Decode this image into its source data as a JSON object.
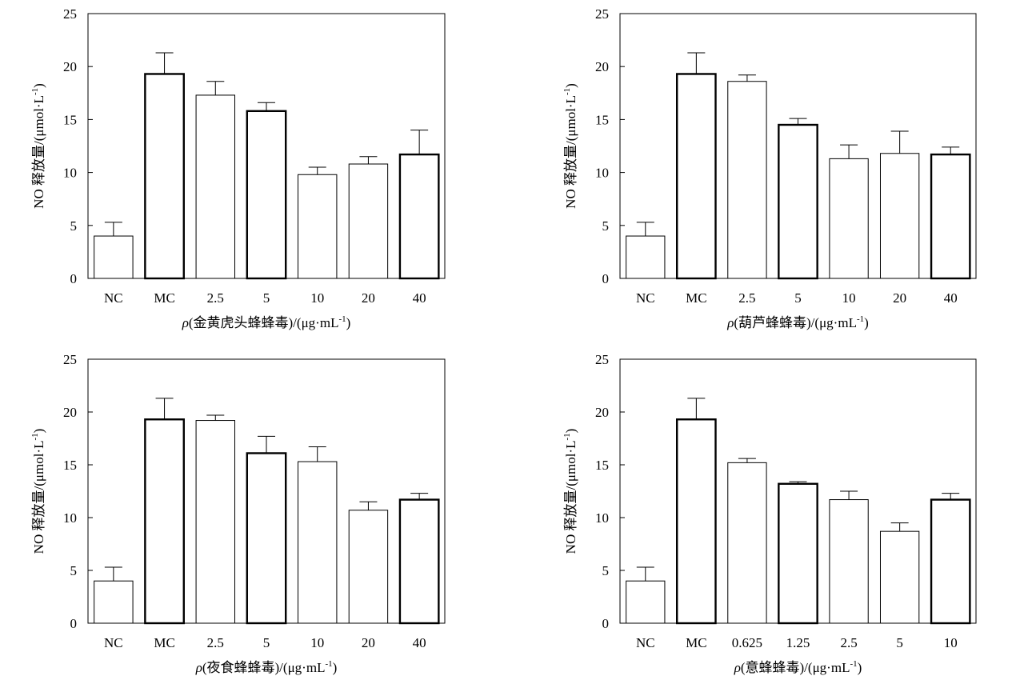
{
  "chart_data": [
    {
      "type": "bar",
      "ylabel_main": "NO 释放量/(μmol·L",
      "ylabel_sup": "-1",
      "ylabel_close": ")",
      "xlabel_rho": "ρ",
      "xlabel_main": "(金黄虎头蜂蜂毒)/(μg·mL",
      "xlabel_sup": "-1",
      "xlabel_close": ")",
      "ylim": [
        0,
        25
      ],
      "yticks": [
        "0",
        "5",
        "10",
        "15",
        "20",
        "25"
      ],
      "categories": [
        "NC",
        "MC",
        "2.5",
        "5",
        "10",
        "20",
        "40"
      ],
      "values": [
        4.0,
        19.3,
        17.3,
        15.8,
        9.8,
        10.8,
        11.7
      ],
      "errors": [
        1.3,
        2.0,
        1.3,
        0.8,
        0.7,
        0.7,
        2.3
      ],
      "bold": [
        false,
        true,
        false,
        true,
        false,
        false,
        true
      ]
    },
    {
      "type": "bar",
      "ylabel_main": "NO 释放量/(μmol·L",
      "ylabel_sup": "-1",
      "ylabel_close": ")",
      "xlabel_rho": "ρ",
      "xlabel_main": "(葫芦蜂蜂毒)/(μg·mL",
      "xlabel_sup": "-1",
      "xlabel_close": ")",
      "ylim": [
        0,
        25
      ],
      "yticks": [
        "0",
        "5",
        "10",
        "15",
        "20",
        "25"
      ],
      "categories": [
        "NC",
        "MC",
        "2.5",
        "5",
        "10",
        "20",
        "40"
      ],
      "values": [
        4.0,
        19.3,
        18.6,
        14.5,
        11.3,
        11.8,
        11.7
      ],
      "errors": [
        1.3,
        2.0,
        0.6,
        0.6,
        1.3,
        2.1,
        0.7
      ],
      "bold": [
        false,
        true,
        false,
        true,
        false,
        false,
        true
      ]
    },
    {
      "type": "bar",
      "ylabel_main": "NO 释放量/(μmol·L",
      "ylabel_sup": "-1",
      "ylabel_close": ")",
      "xlabel_rho": "ρ",
      "xlabel_main": "(夜食蜂蜂毒)/(μg·mL",
      "xlabel_sup": "-1",
      "xlabel_close": ")",
      "ylim": [
        0,
        25
      ],
      "yticks": [
        "0",
        "5",
        "10",
        "15",
        "20",
        "25"
      ],
      "categories": [
        "NC",
        "MC",
        "2.5",
        "5",
        "10",
        "20",
        "40"
      ],
      "values": [
        4.0,
        19.3,
        19.2,
        16.1,
        15.3,
        10.7,
        11.7
      ],
      "errors": [
        1.3,
        2.0,
        0.5,
        1.6,
        1.4,
        0.8,
        0.6
      ],
      "bold": [
        false,
        true,
        false,
        true,
        false,
        false,
        true
      ]
    },
    {
      "type": "bar",
      "ylabel_main": "NO 释放量/(μmol·L",
      "ylabel_sup": "-1",
      "ylabel_close": ")",
      "xlabel_rho": "ρ",
      "xlabel_main": "(意蜂蜂毒)/(μg·mL",
      "xlabel_sup": "-1",
      "xlabel_close": ")",
      "ylim": [
        0,
        25
      ],
      "yticks": [
        "0",
        "5",
        "10",
        "15",
        "20",
        "25"
      ],
      "categories": [
        "NC",
        "MC",
        "0.625",
        "1.25",
        "2.5",
        "5",
        "10"
      ],
      "values": [
        4.0,
        19.3,
        15.2,
        13.2,
        11.7,
        8.7,
        11.7
      ],
      "errors": [
        1.3,
        2.0,
        0.4,
        0.2,
        0.8,
        0.8,
        0.6
      ],
      "bold": [
        false,
        true,
        false,
        true,
        false,
        false,
        true
      ]
    }
  ]
}
